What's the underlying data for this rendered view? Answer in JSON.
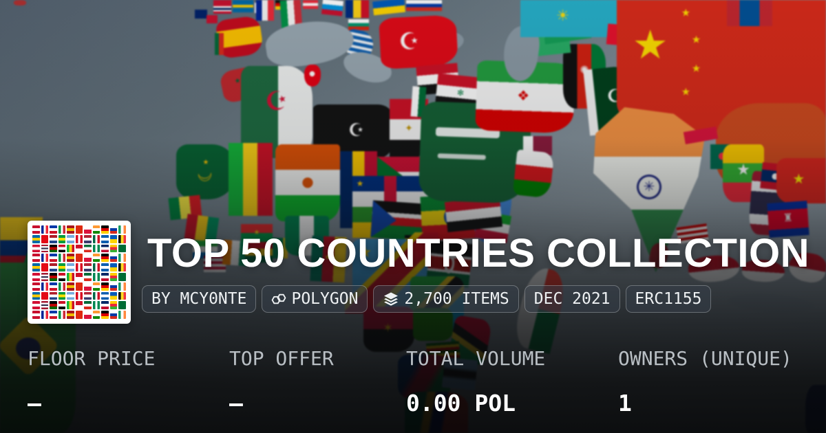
{
  "collection": {
    "title": "TOP 50 COUNTRIES COLLECTION",
    "creator_badge": "BY MCY0NTE",
    "chain_badge": "POLYGON",
    "items_badge": "2,700 ITEMS",
    "date_badge": "DEC 2021",
    "standard_badge": "ERC1155"
  },
  "stats": [
    {
      "label": "FLOOR PRICE",
      "value": "—"
    },
    {
      "label": "TOP OFFER",
      "value": "—"
    },
    {
      "label": "TOTAL VOLUME",
      "value": "0.00 POL"
    },
    {
      "label": "OWNERS (UNIQUE)",
      "value": "1"
    }
  ],
  "icons": {
    "chain": "polygon-icon",
    "items": "layers-icon"
  },
  "colors": {
    "stat_label": "#b9bfc4",
    "stat_value": "#ffffff",
    "badge_background": "rgba(52,62,72,0.55)",
    "badge_border": "rgba(255,255,255,0.28)",
    "ocean": "#8c99a3"
  },
  "thumbnail": {
    "rows": 10,
    "cols": 11,
    "flags": [
      {
        "o": "h",
        "c": [
          "#c8102e",
          "#ffffff",
          "#c8102e"
        ]
      },
      {
        "o": "v",
        "c": [
          "#002395",
          "#ffffff",
          "#ed2939"
        ]
      },
      {
        "o": "h",
        "c": [
          "#0038a8",
          "#ffffff",
          "#ce1126"
        ]
      },
      {
        "o": "v",
        "c": [
          "#009246",
          "#ffffff",
          "#ce2b37"
        ]
      },
      {
        "o": "h",
        "c": [
          "#aa151b",
          "#f1bf00",
          "#aa151b"
        ]
      },
      {
        "o": "h",
        "c": [
          "#de2910"
        ]
      },
      {
        "o": "h",
        "c": [
          "#ffffff",
          "#dc143c"
        ]
      },
      {
        "o": "h",
        "c": [
          "#ff9933",
          "#ffffff",
          "#138808"
        ]
      },
      {
        "o": "h",
        "c": [
          "#000000",
          "#dd0000",
          "#ffce00"
        ]
      },
      {
        "o": "h",
        "c": [
          "#ffffff",
          "#0039a6",
          "#d52b1e"
        ]
      },
      {
        "o": "v",
        "c": [
          "#169b62",
          "#ffffff",
          "#ff883e"
        ]
      },
      {
        "o": "h",
        "c": [
          "#006aa7",
          "#fecc00",
          "#006aa7"
        ]
      },
      {
        "o": "h",
        "c": [
          "#e30a17"
        ]
      },
      {
        "o": "h",
        "c": [
          "#ae1c28",
          "#ffffff",
          "#21468b"
        ]
      },
      {
        "o": "h",
        "c": [
          "#009c3b",
          "#ffdf00",
          "#009c3b"
        ]
      },
      {
        "o": "h",
        "c": [
          "#74acdf",
          "#ffffff",
          "#74acdf"
        ]
      },
      {
        "o": "v",
        "c": [
          "#d80621",
          "#ffffff",
          "#d80621"
        ]
      },
      {
        "o": "h",
        "c": [
          "#b22234",
          "#ffffff",
          "#3c3b6e"
        ]
      },
      {
        "o": "v",
        "c": [
          "#006847",
          "#ffffff",
          "#ce1126"
        ]
      },
      {
        "o": "h",
        "c": [
          "#0d5eaf",
          "#ffffff",
          "#0d5eaf"
        ]
      },
      {
        "o": "h",
        "c": [
          "#005bbb",
          "#ffd500"
        ]
      },
      {
        "o": "v",
        "c": [
          "#000000",
          "#fdda24",
          "#ef3340"
        ]
      },
      {
        "o": "h",
        "c": [
          "#d21034",
          "#ffffff",
          "#d21034"
        ]
      },
      {
        "o": "h",
        "c": [
          "#a51931",
          "#f4f5f8",
          "#2d2a4a",
          "#f4f5f8",
          "#a51931"
        ]
      },
      {
        "o": "h",
        "c": [
          "#000000",
          "#bb0000",
          "#006600"
        ]
      },
      {
        "o": "h",
        "c": [
          "#ce1126",
          "#ffffff",
          "#000000"
        ]
      },
      {
        "o": "v",
        "c": [
          "#14b53a",
          "#fcd116",
          "#ce1126"
        ]
      },
      {
        "o": "h",
        "c": [
          "#ce1126",
          "#ffffff"
        ]
      },
      {
        "o": "h",
        "c": [
          "#046a38",
          "#ffffff",
          "#da291c"
        ]
      },
      {
        "o": "v",
        "c": [
          "#008751",
          "#ffffff",
          "#008751"
        ]
      },
      {
        "o": "h",
        "c": [
          "#002868",
          "#ffffff",
          "#bf0a30"
        ]
      },
      {
        "o": "h",
        "c": [
          "#fecb00",
          "#ea2839",
          "#34b233"
        ]
      },
      {
        "o": "h",
        "c": [
          "#006c35"
        ]
      }
    ]
  }
}
